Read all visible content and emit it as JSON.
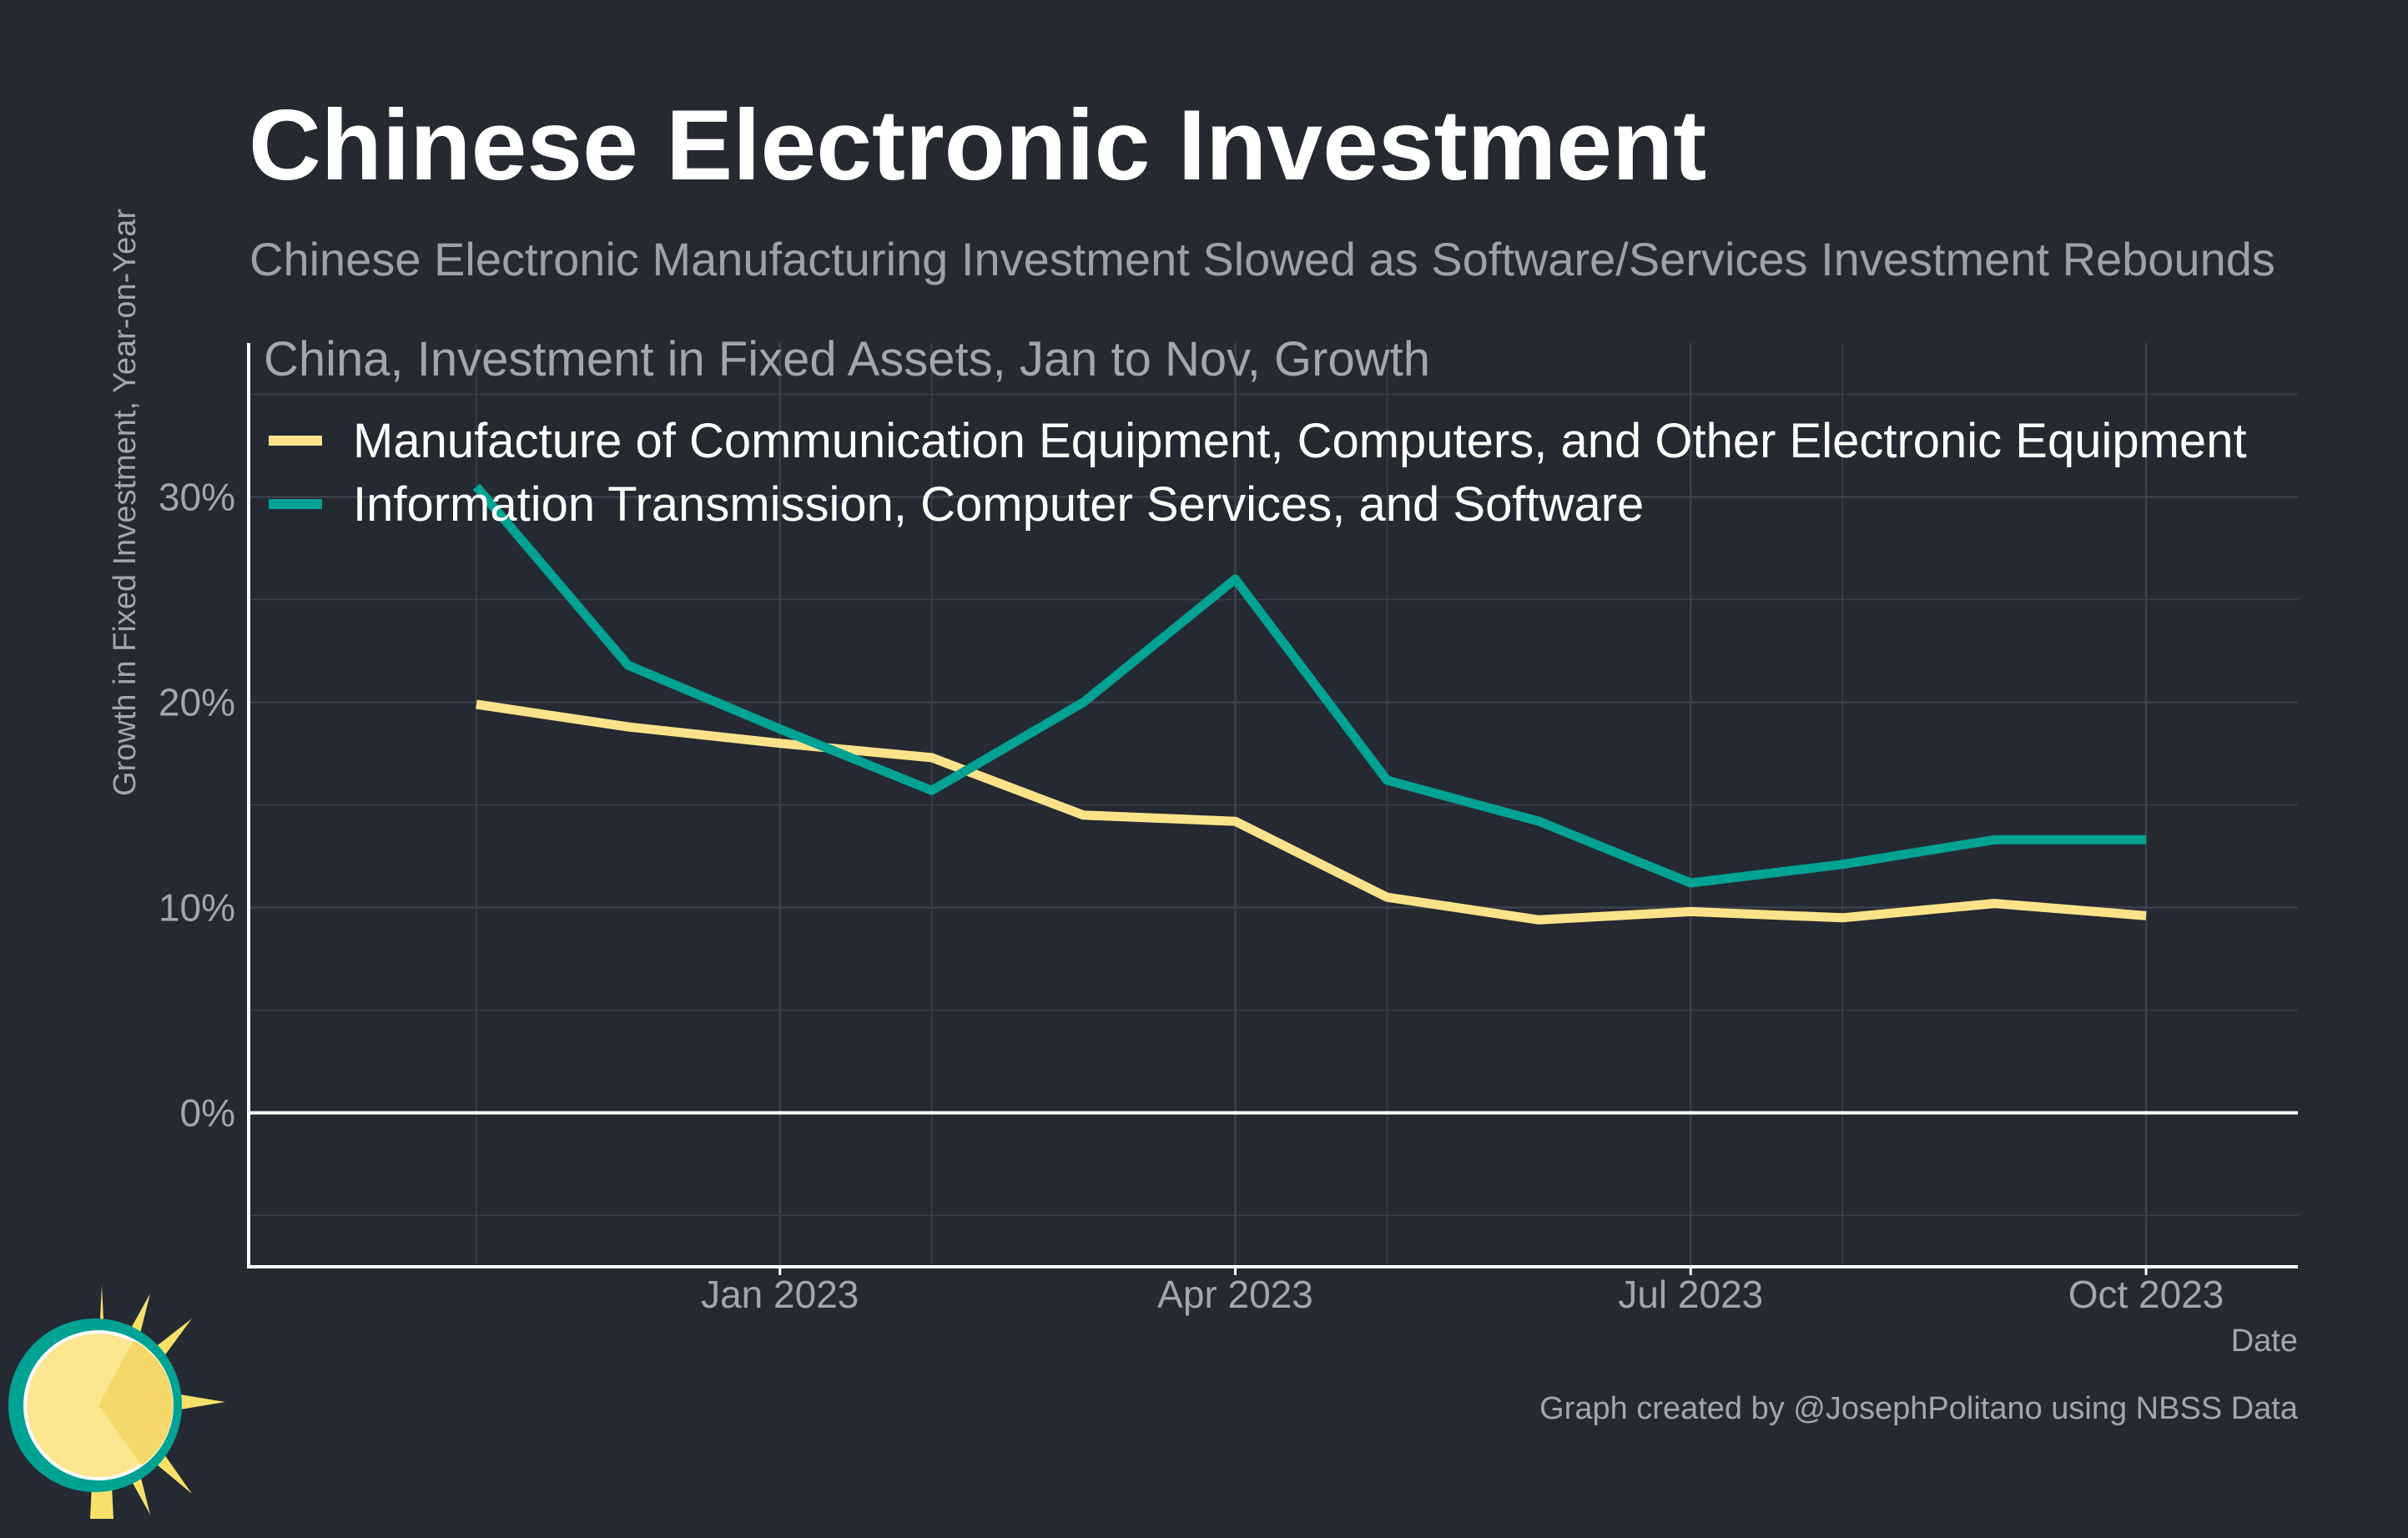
{
  "title": "Chinese Electronic Investment",
  "subtitle": "Chinese Electronic Manufacturing Investment Slowed as Software/Services Investment Rebounds",
  "caption": "Graph created by @JosephPolitano using NBSS Data",
  "logo": "sun-logo",
  "colors": {
    "background": "#252932",
    "series_manufacture": "#fce38a",
    "series_information": "#00a294",
    "grid": "#3c414b",
    "axis": "#ffffff"
  },
  "chart_data": {
    "type": "line",
    "title": "China, Investment in Fixed Assets, Jan to Nov, Growth",
    "xlabel": "Date",
    "ylabel": "Growth in Fixed Investment, Year-on-Year",
    "x": [
      "2022-11",
      "2022-12",
      "2023-01",
      "2023-02",
      "2023-03",
      "2023-04",
      "2023-05",
      "2023-06",
      "2023-07",
      "2023-08",
      "2023-09",
      "2023-10"
    ],
    "x_ticks": [
      "Jan 2023",
      "Apr 2023",
      "Jul 2023",
      "Oct 2023"
    ],
    "y_ticks": [
      "0%",
      "10%",
      "20%",
      "30%"
    ],
    "ylim": [
      -7.5,
      37.5
    ],
    "grid": true,
    "legend_position": "top-left",
    "series": [
      {
        "name": "Manufacture of Communication Equipment, Computers, and Other Electronic Equipment",
        "color": "#fce38a",
        "values": [
          19.9,
          18.8,
          18.0,
          17.3,
          14.5,
          14.2,
          10.5,
          9.4,
          9.8,
          9.5,
          10.2,
          9.6
        ]
      },
      {
        "name": "Information Transmission, Computer Services, and Software",
        "color": "#00a294",
        "values": [
          30.5,
          21.8,
          18.7,
          15.7,
          20.0,
          26.0,
          16.2,
          14.2,
          11.2,
          12.1,
          13.3,
          13.3
        ]
      }
    ]
  }
}
